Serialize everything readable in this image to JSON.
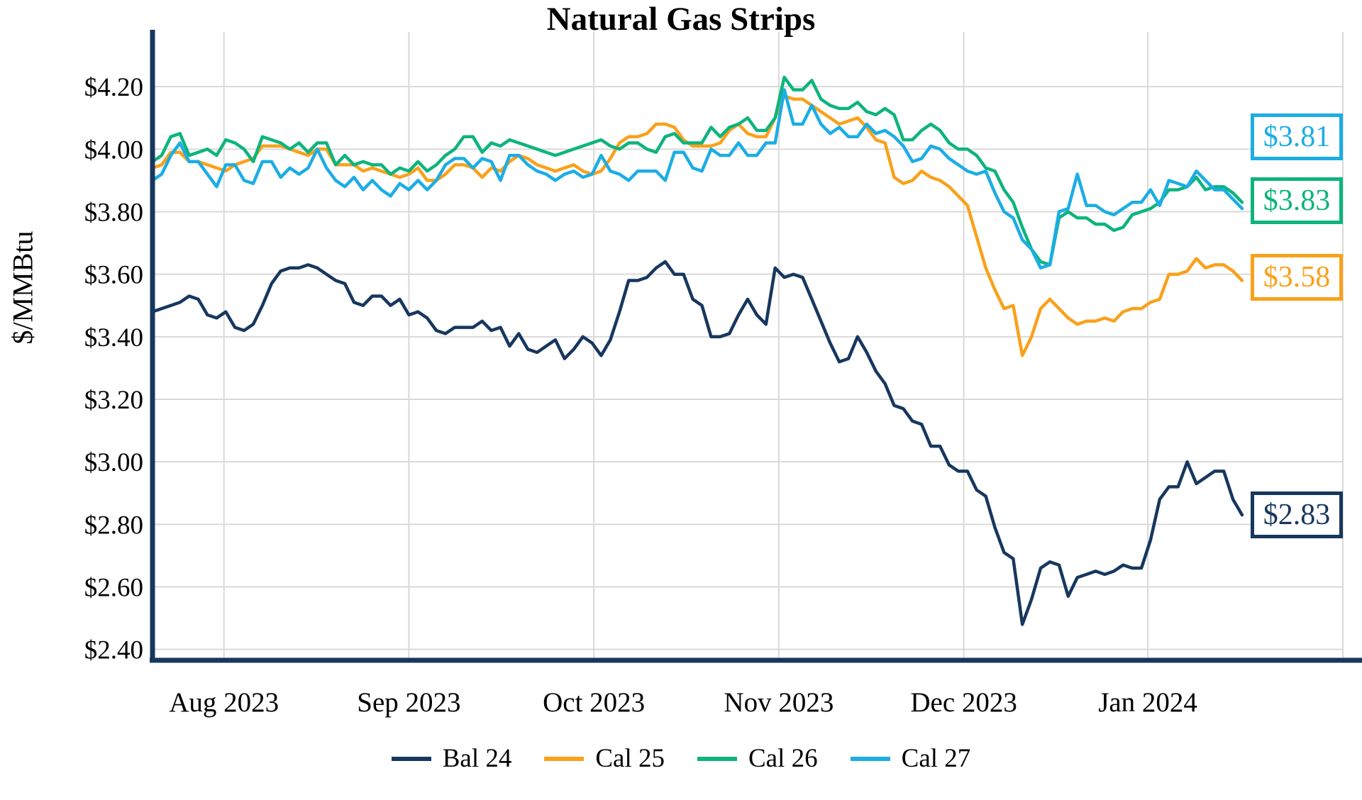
{
  "title": "Natural Gas Strips",
  "y_axis_label": "$/MMBtu",
  "chart_data": {
    "type": "line",
    "title": "Natural Gas Strips",
    "xlabel": "",
    "ylabel": "$/MMBtu",
    "grid": true,
    "legend_position": "bottom",
    "x_unit": "daily settlements, late Jul 2023 through mid Jan 2024",
    "xlim": [
      0,
      130
    ],
    "ylim": [
      2.372,
      4.375
    ],
    "y_ticks": [
      {
        "label": "$2.40",
        "value": 2.4
      },
      {
        "label": "$2.60",
        "value": 2.6
      },
      {
        "label": "$2.80",
        "value": 2.8
      },
      {
        "label": "$3.00",
        "value": 3.0
      },
      {
        "label": "$3.20",
        "value": 3.2
      },
      {
        "label": "$3.40",
        "value": 3.4
      },
      {
        "label": "$3.60",
        "value": 3.6
      },
      {
        "label": "$3.80",
        "value": 3.8
      },
      {
        "label": "$4.00",
        "value": 4.0
      },
      {
        "label": "$4.20",
        "value": 4.2
      }
    ],
    "x_ticks": [
      {
        "label": "Aug 2023",
        "pos": 7.8
      },
      {
        "label": "Sep 2023",
        "pos": 28.0
      },
      {
        "label": "Oct 2023",
        "pos": 48.2
      },
      {
        "label": "Nov 2023",
        "pos": 68.4
      },
      {
        "label": "Dec 2023",
        "pos": 88.6
      },
      {
        "label": "Jan 2024",
        "pos": 108.7
      }
    ],
    "series": [
      {
        "name": "Bal 24",
        "color": "#17375E",
        "end_label": "$2.83",
        "end_label_anchor": 2.83,
        "values": [
          3.48,
          3.49,
          3.5,
          3.51,
          3.53,
          3.52,
          3.47,
          3.46,
          3.48,
          3.43,
          3.42,
          3.44,
          3.5,
          3.57,
          3.61,
          3.62,
          3.62,
          3.63,
          3.62,
          3.6,
          3.58,
          3.57,
          3.51,
          3.5,
          3.53,
          3.53,
          3.5,
          3.52,
          3.47,
          3.48,
          3.46,
          3.42,
          3.41,
          3.43,
          3.43,
          3.43,
          3.45,
          3.42,
          3.43,
          3.37,
          3.41,
          3.36,
          3.35,
          3.37,
          3.39,
          3.33,
          3.36,
          3.4,
          3.38,
          3.34,
          3.39,
          3.48,
          3.58,
          3.58,
          3.59,
          3.62,
          3.64,
          3.6,
          3.6,
          3.52,
          3.5,
          3.4,
          3.4,
          3.41,
          3.47,
          3.52,
          3.47,
          3.44,
          3.62,
          3.59,
          3.6,
          3.59,
          3.52,
          3.45,
          3.38,
          3.32,
          3.33,
          3.4,
          3.35,
          3.29,
          3.25,
          3.18,
          3.17,
          3.13,
          3.12,
          3.05,
          3.05,
          2.99,
          2.97,
          2.97,
          2.91,
          2.89,
          2.79,
          2.71,
          2.69,
          2.48,
          2.56,
          2.66,
          2.68,
          2.67,
          2.57,
          2.63,
          2.64,
          2.65,
          2.64,
          2.65,
          2.67,
          2.66,
          2.66,
          2.75,
          2.88,
          2.92,
          2.92,
          3.0,
          2.93,
          2.95,
          2.97,
          2.97,
          2.88,
          2.83
        ]
      },
      {
        "name": "Cal 25",
        "color": "#F9A11B",
        "end_label": "$3.58",
        "end_label_anchor": 3.59,
        "values": [
          3.94,
          3.95,
          3.99,
          3.99,
          3.96,
          3.96,
          3.95,
          3.94,
          3.93,
          3.95,
          3.96,
          3.97,
          4.01,
          4.01,
          4.01,
          4.0,
          3.99,
          3.98,
          4.0,
          4.0,
          3.95,
          3.95,
          3.95,
          3.93,
          3.94,
          3.93,
          3.92,
          3.91,
          3.92,
          3.94,
          3.9,
          3.9,
          3.92,
          3.95,
          3.95,
          3.94,
          3.91,
          3.94,
          3.93,
          3.96,
          3.98,
          3.97,
          3.95,
          3.94,
          3.93,
          3.94,
          3.95,
          3.93,
          3.92,
          3.93,
          3.97,
          4.02,
          4.04,
          4.04,
          4.05,
          4.08,
          4.08,
          4.07,
          4.03,
          4.01,
          4.01,
          4.01,
          4.02,
          4.06,
          4.08,
          4.05,
          4.04,
          4.04,
          4.1,
          4.17,
          4.16,
          4.16,
          4.14,
          4.12,
          4.1,
          4.08,
          4.09,
          4.1,
          4.07,
          4.03,
          4.02,
          3.91,
          3.89,
          3.9,
          3.93,
          3.91,
          3.9,
          3.88,
          3.85,
          3.82,
          3.72,
          3.62,
          3.55,
          3.49,
          3.5,
          3.34,
          3.4,
          3.49,
          3.52,
          3.49,
          3.46,
          3.44,
          3.45,
          3.45,
          3.46,
          3.45,
          3.48,
          3.49,
          3.49,
          3.51,
          3.52,
          3.6,
          3.6,
          3.61,
          3.65,
          3.62,
          3.63,
          3.63,
          3.61,
          3.58
        ]
      },
      {
        "name": "Cal 26",
        "color": "#0DB47E",
        "end_label": "$3.83",
        "end_label_anchor": 3.835,
        "values": [
          3.96,
          3.98,
          4.04,
          4.05,
          3.98,
          3.99,
          4.0,
          3.98,
          4.03,
          4.02,
          4.0,
          3.96,
          4.04,
          4.03,
          4.02,
          4.0,
          4.02,
          3.99,
          4.02,
          4.02,
          3.95,
          3.98,
          3.95,
          3.96,
          3.95,
          3.95,
          3.92,
          3.94,
          3.93,
          3.96,
          3.93,
          3.95,
          3.98,
          4.0,
          4.04,
          4.04,
          3.99,
          4.02,
          4.01,
          4.03,
          4.02,
          4.01,
          4.0,
          3.99,
          3.98,
          3.99,
          4.0,
          4.01,
          4.02,
          4.03,
          4.01,
          4.0,
          4.02,
          4.02,
          4.0,
          3.99,
          4.04,
          4.05,
          4.02,
          4.02,
          4.02,
          4.07,
          4.04,
          4.07,
          4.08,
          4.1,
          4.06,
          4.06,
          4.1,
          4.23,
          4.19,
          4.19,
          4.22,
          4.16,
          4.14,
          4.13,
          4.13,
          4.15,
          4.12,
          4.11,
          4.13,
          4.11,
          4.03,
          4.03,
          4.06,
          4.08,
          4.06,
          4.02,
          4.0,
          4.0,
          3.98,
          3.94,
          3.93,
          3.87,
          3.83,
          3.75,
          3.68,
          3.64,
          3.63,
          3.78,
          3.8,
          3.78,
          3.78,
          3.76,
          3.76,
          3.74,
          3.75,
          3.79,
          3.8,
          3.81,
          3.83,
          3.87,
          3.87,
          3.88,
          3.91,
          3.87,
          3.88,
          3.88,
          3.86,
          3.83
        ]
      },
      {
        "name": "Cal 27",
        "color": "#1CADE4",
        "end_label": "$3.81",
        "end_label_anchor": 4.04,
        "values": [
          3.9,
          3.92,
          3.98,
          4.02,
          3.96,
          3.96,
          3.92,
          3.88,
          3.95,
          3.95,
          3.9,
          3.89,
          3.96,
          3.96,
          3.91,
          3.94,
          3.92,
          3.94,
          4.0,
          3.94,
          3.9,
          3.88,
          3.91,
          3.87,
          3.9,
          3.87,
          3.85,
          3.89,
          3.87,
          3.9,
          3.87,
          3.9,
          3.95,
          3.97,
          3.97,
          3.94,
          3.97,
          3.96,
          3.9,
          3.98,
          3.98,
          3.95,
          3.93,
          3.92,
          3.9,
          3.92,
          3.93,
          3.91,
          3.92,
          3.98,
          3.93,
          3.92,
          3.9,
          3.93,
          3.93,
          3.93,
          3.9,
          3.99,
          3.99,
          3.94,
          3.93,
          4.0,
          3.98,
          3.98,
          4.02,
          3.98,
          3.98,
          4.02,
          4.02,
          4.19,
          4.08,
          4.08,
          4.14,
          4.08,
          4.05,
          4.07,
          4.04,
          4.04,
          4.08,
          4.05,
          4.06,
          4.04,
          4.01,
          3.96,
          3.97,
          4.01,
          4.0,
          3.97,
          3.95,
          3.93,
          3.92,
          3.93,
          3.86,
          3.8,
          3.78,
          3.71,
          3.68,
          3.62,
          3.63,
          3.8,
          3.81,
          3.92,
          3.82,
          3.82,
          3.8,
          3.79,
          3.81,
          3.83,
          3.83,
          3.87,
          3.82,
          3.9,
          3.89,
          3.88,
          3.93,
          3.9,
          3.87,
          3.87,
          3.84,
          3.81
        ]
      }
    ],
    "colors": {
      "grid": "#D9D9D9",
      "axis": "#17375E",
      "background": "#FFFFFF"
    }
  }
}
